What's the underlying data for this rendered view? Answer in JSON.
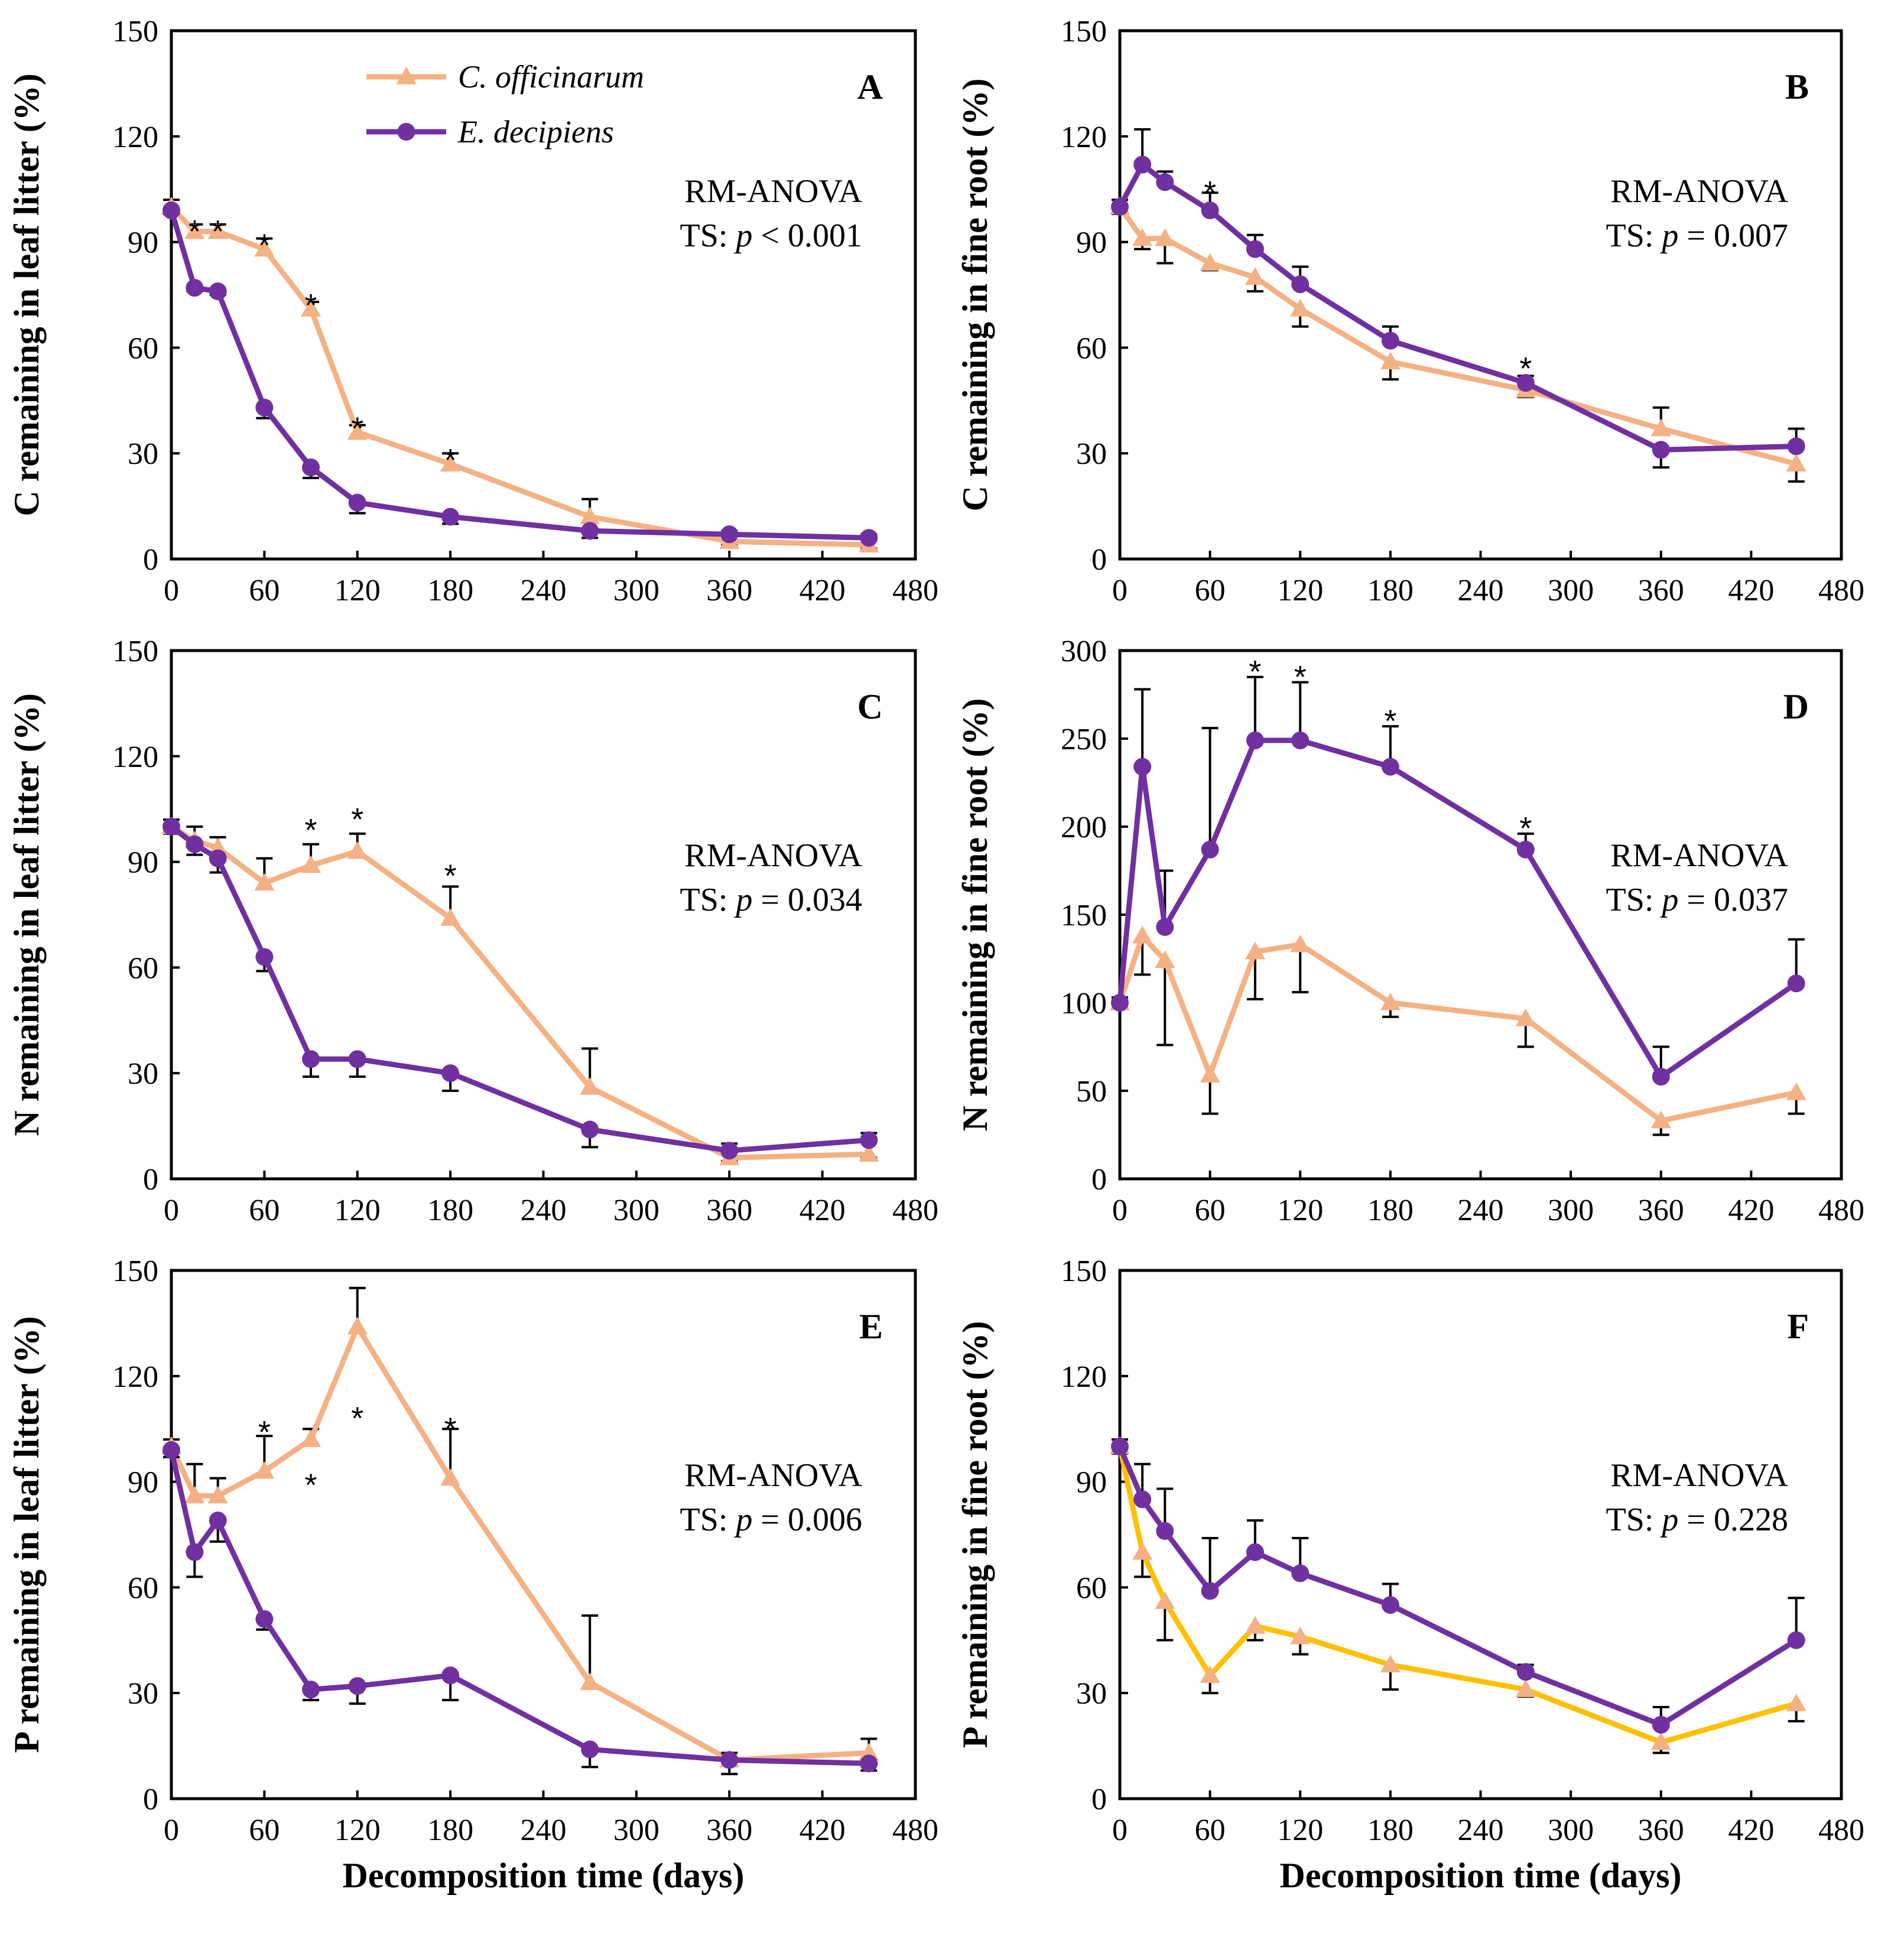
{
  "legend": {
    "series": [
      {
        "name": "C. officinarum",
        "color": "#F4B183",
        "marker": "triangle"
      },
      {
        "name": "E. decipiens",
        "color": "#7030A0",
        "marker": "circle"
      }
    ]
  },
  "stat_label": "RM-ANOVA",
  "xlabel": "Decomposition time (days)",
  "chart_data": [
    {
      "id": "A",
      "type": "line",
      "ylabel": "C remaining in leaf litter (%)",
      "xlim": [
        0,
        480
      ],
      "xticks": [
        0,
        60,
        120,
        180,
        240,
        300,
        360,
        420,
        480
      ],
      "ylim": [
        0,
        150
      ],
      "yticks": [
        0,
        30,
        60,
        90,
        120,
        150
      ],
      "stat_ts": "TS: ",
      "stat_p": "p",
      "stat_val": " < 0.001",
      "series": [
        {
          "name": "C. officinarum",
          "color": "#F4B183",
          "marker": "triangle",
          "x": [
            0,
            15,
            30,
            60,
            90,
            120,
            180,
            270,
            360,
            450
          ],
          "y": [
            100,
            93,
            93,
            88,
            71,
            36,
            27,
            12,
            5,
            4
          ],
          "err": [
            2,
            2,
            2,
            3,
            2,
            2,
            3,
            5,
            1,
            1
          ]
        },
        {
          "name": "E. decipiens",
          "color": "#7030A0",
          "marker": "circle",
          "x": [
            0,
            15,
            30,
            60,
            90,
            120,
            180,
            270,
            360,
            450
          ],
          "y": [
            99,
            77,
            76,
            43,
            26,
            16,
            12,
            8,
            7,
            6
          ],
          "err": [
            1,
            1,
            1,
            3,
            3,
            3,
            2,
            2,
            1,
            1
          ]
        }
      ],
      "stars": [
        [
          15,
          95
        ],
        [
          30,
          95
        ],
        [
          60,
          91
        ],
        [
          90,
          74
        ],
        [
          120,
          39
        ],
        [
          180,
          30
        ]
      ]
    },
    {
      "id": "B",
      "type": "line",
      "ylabel": "C remaining in fine root (%)",
      "xlim": [
        0,
        480
      ],
      "xticks": [
        0,
        60,
        120,
        180,
        240,
        300,
        360,
        420,
        480
      ],
      "ylim": [
        0,
        150
      ],
      "yticks": [
        0,
        30,
        60,
        90,
        120,
        150
      ],
      "stat_ts": "TS: ",
      "stat_p": "p",
      "stat_val": " = 0.007",
      "series": [
        {
          "name": "C. officinarum",
          "color": "#F4B183",
          "marker": "triangle",
          "x": [
            0,
            15,
            30,
            60,
            90,
            120,
            180,
            270,
            360,
            450
          ],
          "y": [
            100,
            91,
            91,
            84,
            80,
            71,
            56,
            48,
            37,
            27
          ],
          "err": [
            2,
            3,
            7,
            2,
            4,
            5,
            5,
            2,
            6,
            5
          ]
        },
        {
          "name": "E. decipiens",
          "color": "#7030A0",
          "marker": "circle",
          "x": [
            0,
            15,
            30,
            60,
            90,
            120,
            180,
            270,
            360,
            450
          ],
          "y": [
            100,
            112,
            107,
            99,
            88,
            78,
            62,
            50,
            31,
            32
          ],
          "err": [
            2,
            10,
            3,
            5,
            4,
            5,
            4,
            2,
            5,
            5
          ]
        }
      ],
      "stars": [
        [
          60,
          106
        ],
        [
          270,
          56
        ]
      ]
    },
    {
      "id": "C",
      "type": "line",
      "ylabel": "N remaining in leaf litter (%)",
      "xlim": [
        0,
        480
      ],
      "xticks": [
        0,
        60,
        120,
        180,
        240,
        300,
        360,
        420,
        480
      ],
      "ylim": [
        0,
        150
      ],
      "yticks": [
        0,
        30,
        60,
        90,
        120,
        150
      ],
      "stat_ts": "TS: ",
      "stat_p": "p",
      "stat_val": " = 0.034",
      "series": [
        {
          "name": "C. officinarum",
          "color": "#F4B183",
          "marker": "triangle",
          "x": [
            0,
            15,
            30,
            60,
            90,
            120,
            180,
            270,
            360,
            450
          ],
          "y": [
            100,
            96,
            94,
            84,
            89,
            93,
            74,
            26,
            6,
            7
          ],
          "err": [
            2,
            4,
            3,
            7,
            6,
            5,
            9,
            11,
            1,
            1
          ]
        },
        {
          "name": "E. decipiens",
          "color": "#7030A0",
          "marker": "circle",
          "x": [
            0,
            15,
            30,
            60,
            90,
            120,
            180,
            270,
            360,
            450
          ],
          "y": [
            100,
            95,
            91,
            63,
            34,
            34,
            30,
            14,
            8,
            11
          ],
          "err": [
            2,
            3,
            4,
            4,
            5,
            5,
            5,
            5,
            2,
            2
          ]
        }
      ],
      "stars": [
        [
          90,
          101
        ],
        [
          120,
          104
        ],
        [
          180,
          88
        ]
      ]
    },
    {
      "id": "D",
      "type": "line",
      "ylabel": "N remaining in fine root (%)",
      "xlim": [
        0,
        480
      ],
      "xticks": [
        0,
        60,
        120,
        180,
        240,
        300,
        360,
        420,
        480
      ],
      "ylim": [
        0,
        300
      ],
      "yticks": [
        0,
        50,
        100,
        150,
        200,
        250,
        300
      ],
      "stat_ts": "TS: ",
      "stat_p": "p",
      "stat_val": " = 0.037",
      "series": [
        {
          "name": "C. officinarum",
          "color": "#F4B183",
          "marker": "triangle",
          "x": [
            0,
            15,
            30,
            60,
            90,
            120,
            180,
            270,
            360,
            450
          ],
          "y": [
            100,
            138,
            124,
            59,
            129,
            133,
            100,
            91,
            33,
            49
          ],
          "err": [
            3,
            22,
            48,
            22,
            27,
            27,
            8,
            16,
            8,
            12
          ]
        },
        {
          "name": "E. decipiens",
          "color": "#7030A0",
          "marker": "circle",
          "x": [
            0,
            15,
            30,
            60,
            90,
            120,
            180,
            270,
            360,
            450
          ],
          "y": [
            100,
            234,
            143,
            187,
            249,
            249,
            234,
            187,
            58,
            111
          ],
          "err": [
            3,
            44,
            32,
            69,
            36,
            33,
            23,
            9,
            17,
            25
          ]
        }
      ],
      "stars": [
        [
          90,
          292
        ],
        [
          120,
          289
        ],
        [
          180,
          264
        ],
        [
          270,
          203
        ]
      ]
    },
    {
      "id": "E",
      "type": "line",
      "ylabel": "P remaining in leaf litter (%)",
      "xlim": [
        0,
        480
      ],
      "xticks": [
        0,
        60,
        120,
        180,
        240,
        300,
        360,
        420,
        480
      ],
      "ylim": [
        0,
        150
      ],
      "yticks": [
        0,
        30,
        60,
        90,
        120,
        150
      ],
      "stat_ts": "TS: ",
      "stat_p": "p",
      "stat_val": " = 0.006",
      "series": [
        {
          "name": "C. officinarum",
          "color": "#F4B183",
          "marker": "triangle",
          "x": [
            0,
            15,
            30,
            60,
            90,
            120,
            180,
            270,
            360,
            450
          ],
          "y": [
            100,
            86,
            86,
            93,
            102,
            134,
            91,
            33,
            11,
            13
          ],
          "err": [
            2,
            9,
            5,
            10,
            3,
            11,
            14,
            19,
            4,
            4
          ]
        },
        {
          "name": "E. decipiens",
          "color": "#7030A0",
          "marker": "circle",
          "x": [
            0,
            15,
            30,
            60,
            90,
            120,
            180,
            270,
            360,
            450
          ],
          "y": [
            99,
            70,
            79,
            51,
            31,
            32,
            35,
            14,
            11,
            10
          ],
          "err": [
            2,
            7,
            6,
            3,
            3,
            5,
            7,
            5,
            2,
            2
          ]
        }
      ],
      "stars": [
        [
          60,
          106
        ],
        [
          90,
          91
        ],
        [
          120,
          110
        ],
        [
          180,
          107
        ]
      ]
    },
    {
      "id": "F",
      "type": "line",
      "ylabel": "P remaining in fine root (%)",
      "xlim": [
        0,
        480
      ],
      "xticks": [
        0,
        60,
        120,
        180,
        240,
        300,
        360,
        420,
        480
      ],
      "ylim": [
        0,
        150
      ],
      "yticks": [
        0,
        30,
        60,
        90,
        120,
        150
      ],
      "stat_ts": "TS: ",
      "stat_p": "p",
      "stat_val": " = 0.228",
      "series": [
        {
          "name": "C. officinarum",
          "color": "#F4B183",
          "lineColor": "#FFC000",
          "marker": "triangle",
          "x": [
            0,
            15,
            30,
            60,
            90,
            120,
            180,
            270,
            360,
            450
          ],
          "y": [
            100,
            70,
            56,
            35,
            49,
            46,
            38,
            31,
            16,
            27
          ],
          "err": [
            2,
            7,
            11,
            5,
            4,
            5,
            7,
            2,
            3,
            5
          ]
        },
        {
          "name": "E. decipiens",
          "color": "#7030A0",
          "marker": "circle",
          "x": [
            0,
            15,
            30,
            60,
            90,
            120,
            180,
            270,
            360,
            450
          ],
          "y": [
            100,
            85,
            76,
            59,
            70,
            64,
            55,
            36,
            21,
            45
          ],
          "err": [
            2,
            10,
            12,
            15,
            9,
            10,
            6,
            2,
            5,
            12
          ]
        }
      ],
      "stars": []
    }
  ]
}
